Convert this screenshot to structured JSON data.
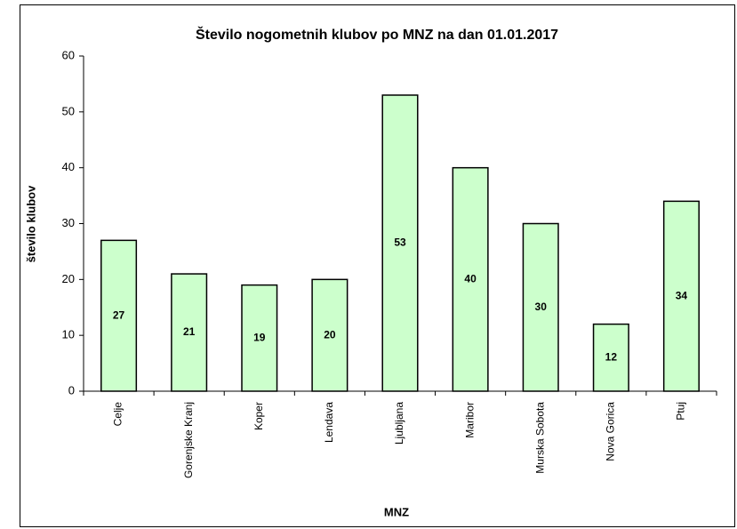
{
  "chart_data": {
    "type": "bar",
    "title": "Število nogometnih klubov po MNZ na dan 01.01.2017",
    "x_label": "MNZ",
    "y_label": "število klubov",
    "categories": [
      "Celje",
      "Gorenjske Kranj",
      "Koper",
      "Lendava",
      "Ljubljana",
      "Maribor",
      "Murska Sobota",
      "Nova Gorica",
      "Ptuj"
    ],
    "values": [
      27,
      21,
      19,
      20,
      53,
      40,
      30,
      12,
      34
    ],
    "color": "#ccffcc",
    "ylim": [
      0,
      60
    ],
    "yticks": [
      0,
      10,
      20,
      30,
      40,
      50,
      60
    ],
    "grid": false
  }
}
